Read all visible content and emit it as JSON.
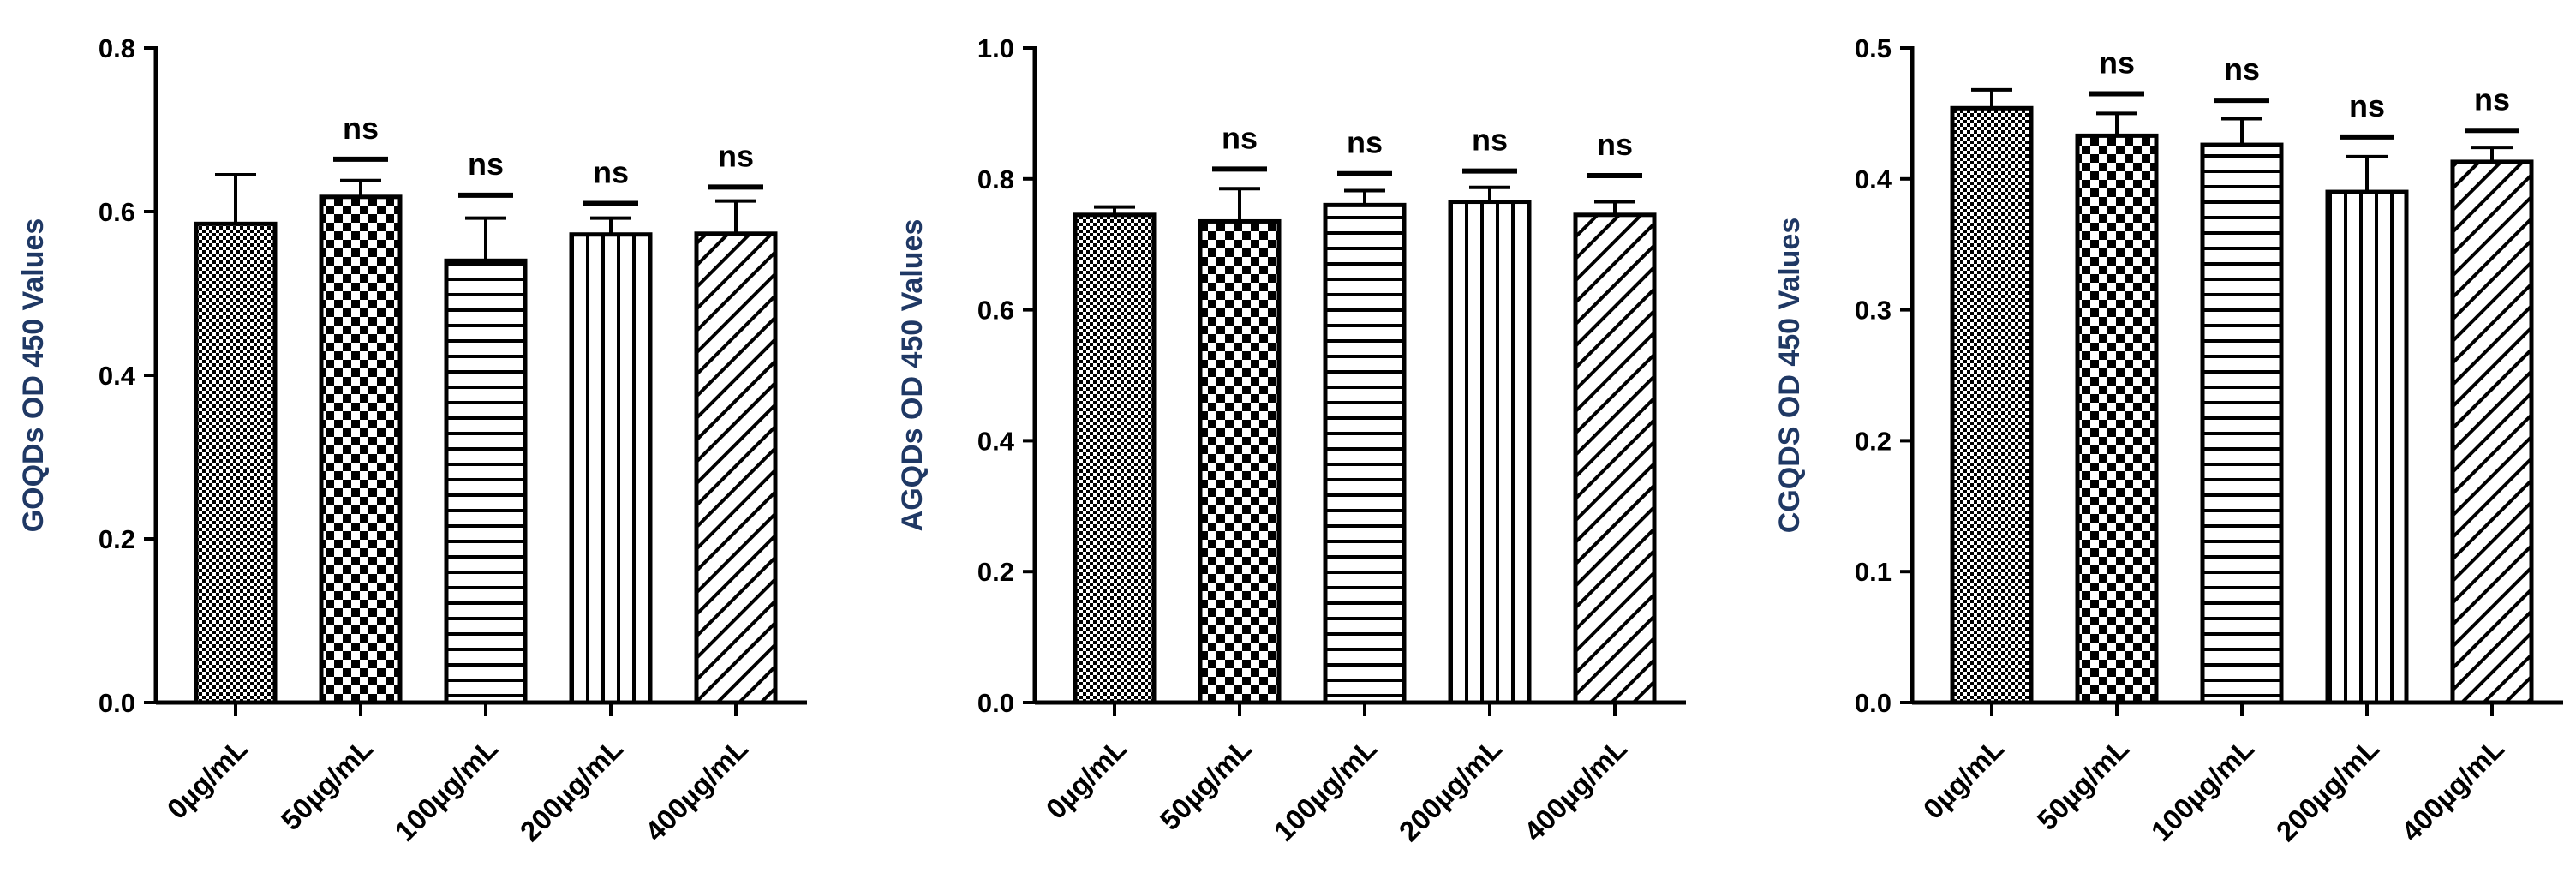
{
  "chart_data": [
    {
      "type": "bar",
      "ylabel": "GOQDs OD 450 Values",
      "ylim": [
        0,
        0.8
      ],
      "yticks": [
        "0.0",
        "0.2",
        "0.4",
        "0.6",
        "0.8"
      ],
      "categories": [
        "0µg/mL",
        "50µg/mL",
        "100µg/mL",
        "200µg/mL",
        "400µg/mL"
      ],
      "values": [
        0.585,
        0.618,
        0.54,
        0.572,
        0.573
      ],
      "errors": [
        0.06,
        0.02,
        0.052,
        0.02,
        0.04
      ],
      "significance": [
        "",
        "ns",
        "ns",
        "ns",
        "ns"
      ],
      "sig_line_y": [
        null,
        0.664,
        0.62,
        0.61,
        0.63
      ],
      "patterns": [
        "fine-check",
        "checker",
        "horizontal",
        "vertical",
        "diagonal"
      ]
    },
    {
      "type": "bar",
      "ylabel": "AGQDs OD 450 Values",
      "ylim": [
        0,
        1.0
      ],
      "yticks": [
        "0.0",
        "0.2",
        "0.4",
        "0.6",
        "0.8",
        "1.0"
      ],
      "categories": [
        "0µg/mL",
        "50µg/mL",
        "100µg/mL",
        "200µg/mL",
        "400µg/mL"
      ],
      "values": [
        0.745,
        0.735,
        0.76,
        0.765,
        0.745
      ],
      "errors": [
        0.012,
        0.05,
        0.022,
        0.022,
        0.02
      ],
      "significance": [
        "",
        "ns",
        "ns",
        "ns",
        "ns"
      ],
      "sig_line_y": [
        null,
        0.815,
        0.808,
        0.812,
        0.805
      ],
      "patterns": [
        "fine-check",
        "checker",
        "horizontal",
        "vertical",
        "diagonal"
      ]
    },
    {
      "type": "bar",
      "ylabel": "CGQDS OD 450 Values",
      "ylim": [
        0,
        0.5
      ],
      "yticks": [
        "0.0",
        "0.1",
        "0.2",
        "0.3",
        "0.4",
        "0.5"
      ],
      "categories": [
        "0µg/mL",
        "50µg/mL",
        "100µg/mL",
        "200µg/mL",
        "400µg/mL"
      ],
      "values": [
        0.454,
        0.433,
        0.426,
        0.39,
        0.413
      ],
      "errors": [
        0.014,
        0.017,
        0.02,
        0.027,
        0.011
      ],
      "significance": [
        "",
        "ns",
        "ns",
        "ns",
        "ns"
      ],
      "sig_line_y": [
        null,
        0.465,
        0.46,
        0.432,
        0.437
      ],
      "patterns": [
        "fine-check",
        "checker",
        "horizontal",
        "vertical",
        "diagonal"
      ]
    }
  ]
}
